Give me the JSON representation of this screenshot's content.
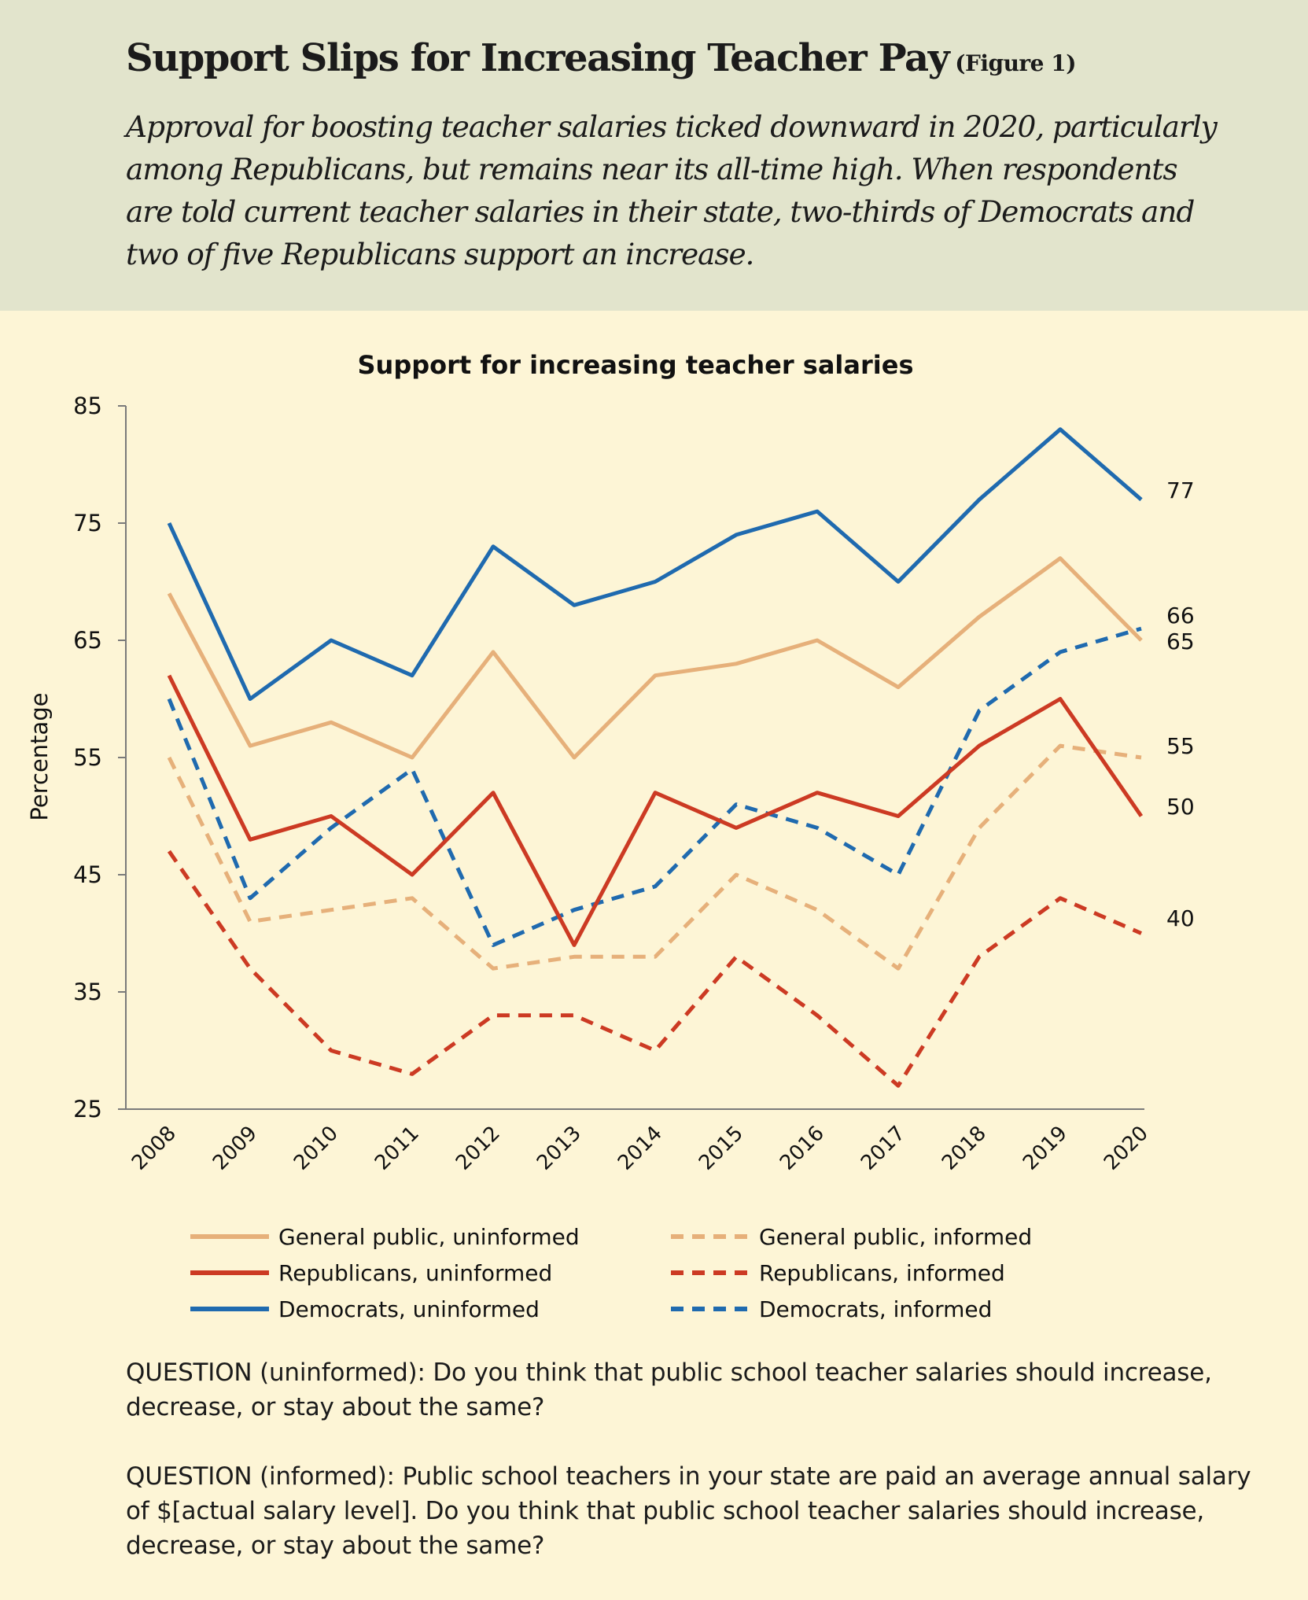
{
  "header": {
    "title": "Support Slips for Increasing Teacher Pay",
    "figure_ref": "(Figure 1)",
    "subtitle": "Approval for boosting teacher salaries ticked downward in 2020, particularly among Republicans, but remains near its all-time high. When respondents are told current teacher salaries in their state, two-thirds of Democrats and two of five Republicans support an increase."
  },
  "chart_data": {
    "type": "line",
    "title": "Support for increasing teacher salaries",
    "ylabel": "Percentage",
    "xlabel": "",
    "ylim": [
      25,
      85
    ],
    "yticks": [
      25,
      35,
      45,
      55,
      65,
      75,
      85
    ],
    "x": [
      "2008",
      "2009",
      "2010",
      "2011",
      "2012",
      "2013",
      "2014",
      "2015",
      "2016",
      "2017",
      "2018",
      "2019",
      "2020"
    ],
    "series": [
      {
        "name": "General public, uninformed",
        "color": "#e6b07a",
        "dashed": false,
        "end_label": "65",
        "values": [
          69,
          56,
          58,
          55,
          64,
          55,
          62,
          63,
          65,
          61,
          67,
          72,
          65
        ]
      },
      {
        "name": "General public, informed",
        "color": "#e6b07a",
        "dashed": true,
        "end_label": "55",
        "values": [
          55,
          41,
          42,
          43,
          37,
          38,
          38,
          45,
          42,
          37,
          49,
          56,
          55
        ]
      },
      {
        "name": "Republicans, uninformed",
        "color": "#cc3a23",
        "dashed": false,
        "end_label": "50",
        "values": [
          62,
          48,
          50,
          45,
          52,
          39,
          52,
          49,
          52,
          50,
          56,
          60,
          50
        ]
      },
      {
        "name": "Republicans, informed",
        "color": "#cc3a23",
        "dashed": true,
        "end_label": "40",
        "values": [
          47,
          37,
          30,
          28,
          33,
          33,
          30,
          38,
          33,
          27,
          38,
          43,
          40
        ]
      },
      {
        "name": "Democrats, uninformed",
        "color": "#1f6aaf",
        "dashed": false,
        "end_label": "77",
        "values": [
          75,
          60,
          65,
          62,
          73,
          68,
          70,
          74,
          76,
          70,
          77,
          83,
          77
        ]
      },
      {
        "name": "Democrats, informed",
        "color": "#1f6aaf",
        "dashed": true,
        "end_label": "66",
        "values": [
          60,
          43,
          49,
          54,
          39,
          42,
          44,
          51,
          49,
          45,
          59,
          64,
          66
        ]
      }
    ],
    "legend_position": "bottom",
    "grid": false
  },
  "questions": {
    "uninformed": "QUESTION (uninformed): Do you think that public school teacher salaries should increase, decrease, or stay about the same?",
    "informed": "QUESTION (informed): Public school teachers in your state are paid an average annual salary of $[actual salary level]. Do you think that public school teacher salaries should increase, decrease, or stay about the same?"
  }
}
